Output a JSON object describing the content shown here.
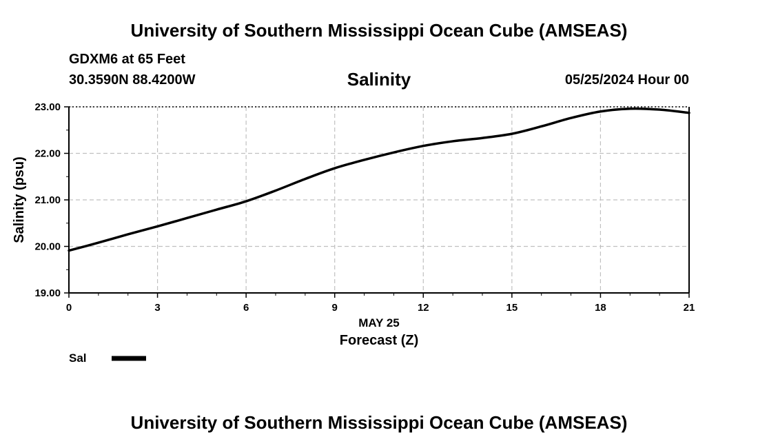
{
  "header": {
    "top_title": "University of Southern Mississippi Ocean Cube (AMSEAS)",
    "station": "GDXM6 at 65 Feet",
    "coords": "30.3590N  88.4200W",
    "chart_title": "Salinity",
    "datetime": "05/25/2024 Hour 00",
    "bottom_title": "University of Southern Mississippi Ocean Cube (AMSEAS)"
  },
  "colors": {
    "line": "#000000",
    "grid": "#c0c0c0",
    "frame": "#000000"
  },
  "chart_data": {
    "type": "line",
    "title": "Salinity",
    "xlabel": "Forecast (Z)",
    "xlabel_date": "MAY 25",
    "ylabel": "Salinity (psu)",
    "xlim": [
      0,
      21
    ],
    "ylim": [
      19,
      23
    ],
    "x_ticks": [
      0,
      3,
      6,
      9,
      12,
      15,
      18,
      21
    ],
    "x_tick_labels": [
      "0",
      "3",
      "6",
      "9",
      "12",
      "15",
      "18",
      "21"
    ],
    "y_ticks": [
      19,
      20,
      21,
      22,
      23
    ],
    "y_tick_labels": [
      "19.00",
      "20.00",
      "21.00",
      "22.00",
      "23.00"
    ],
    "grid": true,
    "legend": {
      "position": "bottom-left",
      "label": "Sal"
    },
    "series": [
      {
        "name": "Sal",
        "x": [
          0,
          1,
          2,
          3,
          4,
          5,
          6,
          7,
          8,
          9,
          10,
          11,
          12,
          13,
          14,
          15,
          16,
          17,
          18,
          19,
          20,
          21
        ],
        "values": [
          19.91,
          20.08,
          20.26,
          20.43,
          20.61,
          20.79,
          20.97,
          21.2,
          21.45,
          21.68,
          21.86,
          22.02,
          22.16,
          22.26,
          22.33,
          22.42,
          22.58,
          22.76,
          22.9,
          22.96,
          22.94,
          22.87
        ]
      }
    ]
  }
}
